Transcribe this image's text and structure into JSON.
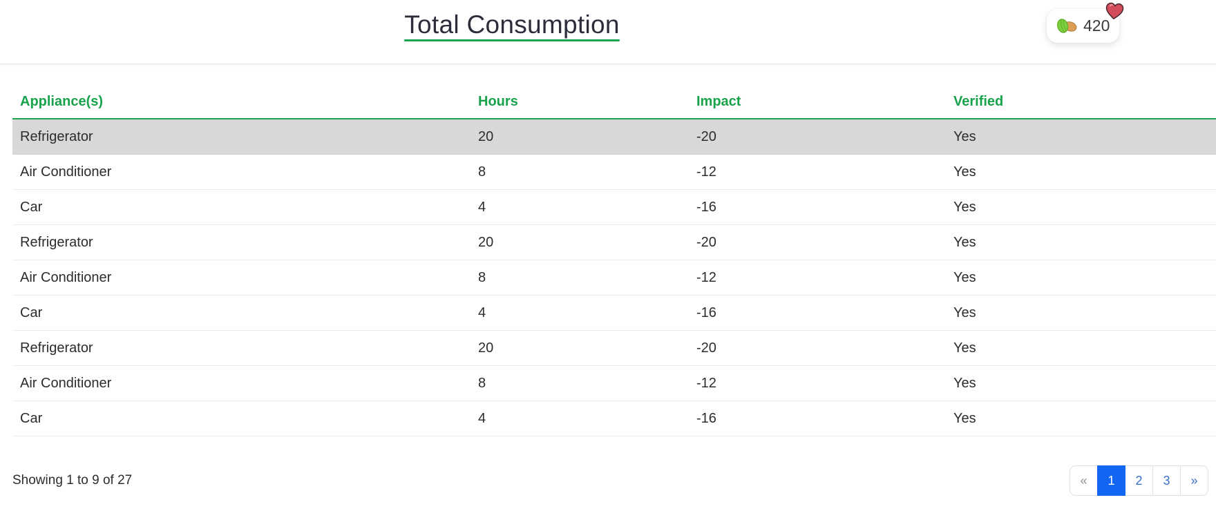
{
  "header": {
    "title": "Total Consumption",
    "points_badge": {
      "value": "420",
      "icon": "seeds-icon",
      "notification_icon": "heart-icon"
    }
  },
  "table": {
    "columns": [
      "Appliance(s)",
      "Hours",
      "Impact",
      "Verified"
    ],
    "highlighted_row_index": 0,
    "rows": [
      [
        "Refrigerator",
        "20",
        "-20",
        "Yes"
      ],
      [
        "Air Conditioner",
        "8",
        "-12",
        "Yes"
      ],
      [
        "Car",
        "4",
        "-16",
        "Yes"
      ],
      [
        "Refrigerator",
        "20",
        "-20",
        "Yes"
      ],
      [
        "Air Conditioner",
        "8",
        "-12",
        "Yes"
      ],
      [
        "Car",
        "4",
        "-16",
        "Yes"
      ],
      [
        "Refrigerator",
        "20",
        "-20",
        "Yes"
      ],
      [
        "Air Conditioner",
        "8",
        "-12",
        "Yes"
      ],
      [
        "Car",
        "4",
        "-16",
        "Yes"
      ]
    ]
  },
  "footer": {
    "showing_text": "Showing 1 to 9 of 27",
    "pagination": [
      {
        "label": "«",
        "state": "disabled"
      },
      {
        "label": "1",
        "state": "active"
      },
      {
        "label": "2",
        "state": "normal"
      },
      {
        "label": "3",
        "state": "normal"
      },
      {
        "label": "»",
        "state": "normal"
      }
    ]
  },
  "colors": {
    "accent_green": "#18a24b",
    "active_page_blue": "#1266f1",
    "link_blue": "#3b71ca",
    "highlight_row_gray": "#d8d8d8"
  }
}
